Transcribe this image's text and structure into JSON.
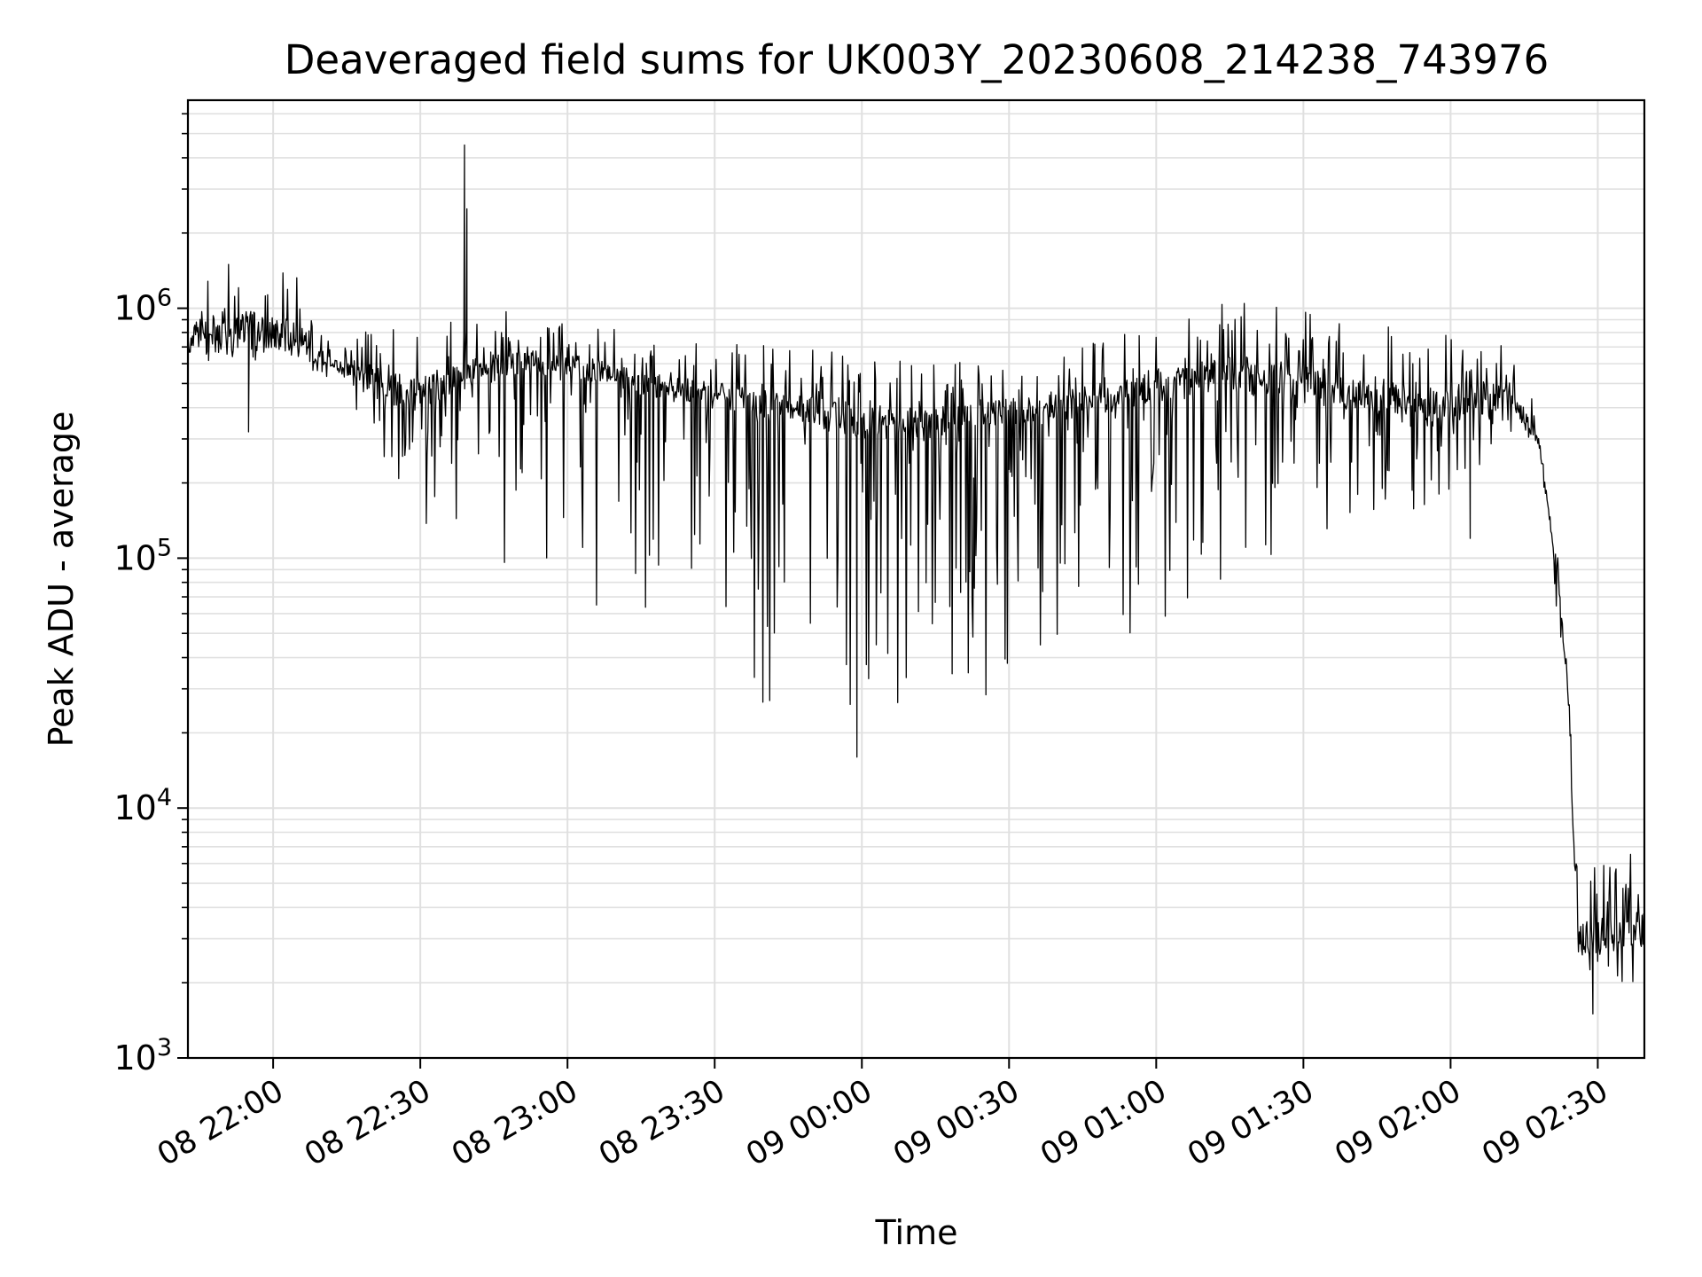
{
  "chart_data": {
    "type": "line",
    "title": "Deaveraged field sums for UK003Y_20230608_214238_743976",
    "xlabel": "Time",
    "ylabel": "Peak ADU - average",
    "yscale": "log",
    "ylim": [
      1000,
      6800000
    ],
    "xlim": [
      "2023-06-08 21:42:38",
      "2023-06-09 02:39:30"
    ],
    "x_ticks": [
      {
        "t": "2023-06-08 22:00",
        "label": "08 22:00"
      },
      {
        "t": "2023-06-08 22:30",
        "label": "08 22:30"
      },
      {
        "t": "2023-06-08 23:00",
        "label": "08 23:00"
      },
      {
        "t": "2023-06-08 23:30",
        "label": "08 23:30"
      },
      {
        "t": "2023-06-09 00:00",
        "label": "09 00:00"
      },
      {
        "t": "2023-06-09 00:30",
        "label": "09 00:30"
      },
      {
        "t": "2023-06-09 01:00",
        "label": "09 01:00"
      },
      {
        "t": "2023-06-09 01:30",
        "label": "09 01:30"
      },
      {
        "t": "2023-06-09 02:00",
        "label": "09 02:00"
      },
      {
        "t": "2023-06-09 02:30",
        "label": "09 02:30"
      }
    ],
    "y_ticks": [
      {
        "value": 1000,
        "base": "10",
        "exp": "3"
      },
      {
        "value": 10000,
        "base": "10",
        "exp": "4"
      },
      {
        "value": 100000,
        "base": "10",
        "exp": "5"
      },
      {
        "value": 1000000,
        "base": "10",
        "exp": "6"
      }
    ],
    "grid": true,
    "line_color": "#000000",
    "grid_color": "#e0e0e0",
    "series": [
      {
        "name": "",
        "envelope": [
          {
            "t": "2023-06-08 21:42:38",
            "baseline": 750000,
            "upper": 1300000,
            "lower": 600000
          },
          {
            "t": "2023-06-08 21:55",
            "baseline": 800000,
            "upper": 1800000,
            "lower": 550000
          },
          {
            "t": "2023-06-08 22:05",
            "baseline": 750000,
            "upper": 1500000,
            "lower": 480000
          },
          {
            "t": "2023-06-08 22:12",
            "baseline": 600000,
            "upper": 700000,
            "lower": 500000
          },
          {
            "t": "2023-06-08 22:20",
            "baseline": 500000,
            "upper": 850000,
            "lower": 300000
          },
          {
            "t": "2023-06-08 22:30",
            "baseline": 450000,
            "upper": 850000,
            "lower": 110000
          },
          {
            "t": "2023-06-08 22:40",
            "baseline": 550000,
            "upper": 900000,
            "lower": 90000
          },
          {
            "t": "2023-06-08 22:50",
            "baseline": 600000,
            "upper": 1000000,
            "lower": 80000
          },
          {
            "t": "2023-06-08 23:00",
            "baseline": 600000,
            "upper": 900000,
            "lower": 60000
          },
          {
            "t": "2023-06-08 23:15",
            "baseline": 500000,
            "upper": 800000,
            "lower": 40000
          },
          {
            "t": "2023-06-08 23:30",
            "baseline": 450000,
            "upper": 750000,
            "lower": 28000
          },
          {
            "t": "2023-06-08 23:45",
            "baseline": 400000,
            "upper": 700000,
            "lower": 22000
          },
          {
            "t": "2023-06-09 00:00",
            "baseline": 350000,
            "upper": 650000,
            "lower": 17000
          },
          {
            "t": "2023-06-09 00:15",
            "baseline": 350000,
            "upper": 620000,
            "lower": 21000
          },
          {
            "t": "2023-06-09 00:30",
            "baseline": 380000,
            "upper": 650000,
            "lower": 24000
          },
          {
            "t": "2023-06-09 00:45",
            "baseline": 420000,
            "upper": 750000,
            "lower": 32000
          },
          {
            "t": "2023-06-09 01:00",
            "baseline": 480000,
            "upper": 850000,
            "lower": 45000
          },
          {
            "t": "2023-06-09 01:15",
            "baseline": 550000,
            "upper": 1100000,
            "lower": 65000
          },
          {
            "t": "2023-06-09 01:30",
            "baseline": 500000,
            "upper": 1050000,
            "lower": 90000
          },
          {
            "t": "2023-06-09 01:45",
            "baseline": 420000,
            "upper": 850000,
            "lower": 130000
          },
          {
            "t": "2023-06-09 02:00",
            "baseline": 420000,
            "upper": 900000,
            "lower": 160000
          },
          {
            "t": "2023-06-09 02:12",
            "baseline": 450000,
            "upper": 700000,
            "lower": 300000
          },
          {
            "t": "2023-06-09 02:18",
            "baseline": 300000,
            "upper": 380000,
            "lower": 220000
          },
          {
            "t": "2023-06-09 02:22",
            "baseline": 80000,
            "upper": 100000,
            "lower": 50000
          },
          {
            "t": "2023-06-09 02:24",
            "baseline": 30000,
            "upper": 50000,
            "lower": 25000
          },
          {
            "t": "2023-06-09 02:25",
            "baseline": 8000,
            "upper": 9000,
            "lower": 6000
          },
          {
            "t": "2023-06-09 02:26",
            "baseline": 3000,
            "upper": 5500,
            "lower": 2300
          },
          {
            "t": "2023-06-09 02:39:30",
            "baseline": 3200,
            "upper": 7000,
            "lower": 1500
          }
        ],
        "features": [
          {
            "t": "2023-06-08 21:55",
            "value": 320000
          },
          {
            "t": "2023-06-08 22:39",
            "value": 4500000
          },
          {
            "t": "2023-06-08 22:39:30",
            "value": 2500000
          },
          {
            "t": "2023-06-08 23:59",
            "value": 16000
          },
          {
            "t": "2023-06-09 02:04",
            "value": 120000
          },
          {
            "t": "2023-06-09 02:29",
            "value": 1500
          }
        ]
      }
    ]
  }
}
